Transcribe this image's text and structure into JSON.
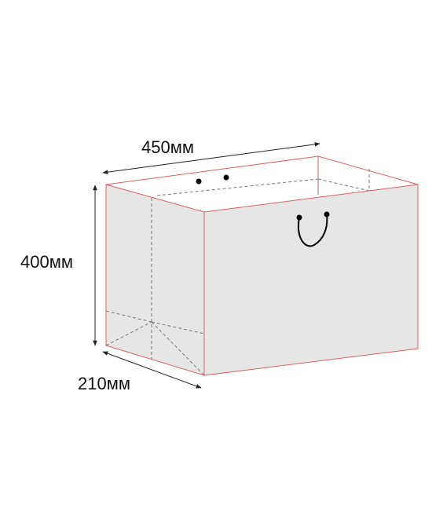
{
  "dimensions": {
    "width_label": "450мм",
    "height_label": "400мм",
    "depth_label": "210мм"
  },
  "colors": {
    "face_fill": "#e6e6e6",
    "edge_color": "#e06060",
    "fold_line_color": "#777777",
    "dimension_line_color": "#222222",
    "handle_color": "#000000"
  }
}
